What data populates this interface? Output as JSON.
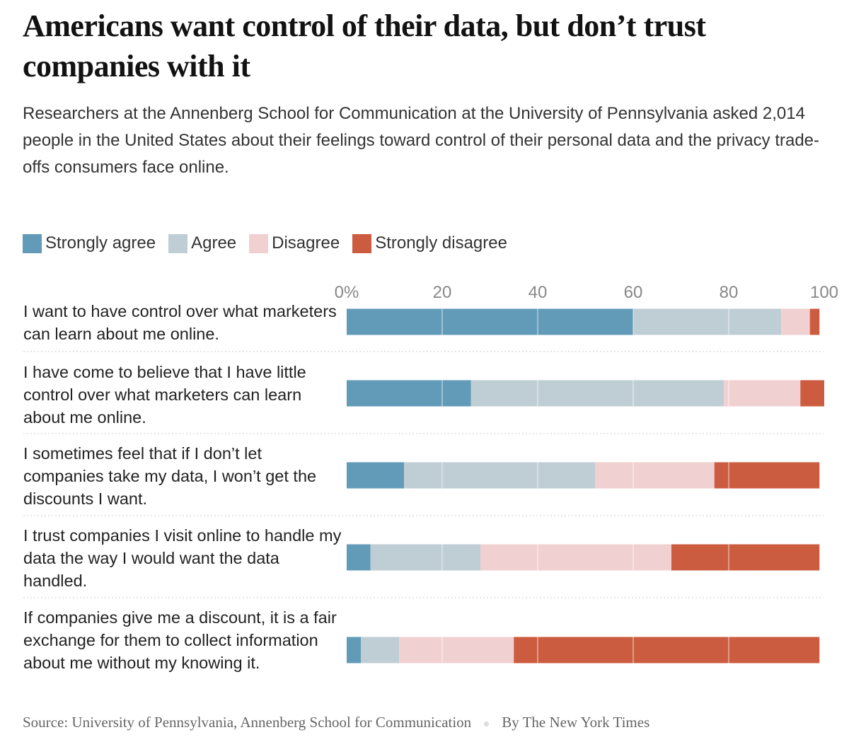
{
  "title": "Americans want control of their data, but don’t trust companies with it",
  "subtitle": "Researchers at the Annenberg School for Communication at the University of Pennsylvania asked 2,014 people in the United States about their feelings toward control of their personal data and the privacy trade-offs consumers face online.",
  "source": "Source: University of Pennsylvania, Annenberg School for Communication",
  "credit": "By The New York Times",
  "chart_data": {
    "type": "bar",
    "orientation": "horizontal",
    "stacked": true,
    "xlim": [
      0,
      100
    ],
    "ticks": [
      "0%",
      "20",
      "40",
      "60",
      "80",
      "100"
    ],
    "tick_values": [
      0,
      20,
      40,
      60,
      80,
      100
    ],
    "legend_position": "top-left",
    "categories": [
      "I want to have control over what marketers can learn about me online.",
      "I have come to believe that I have little control over what marketers can learn about me online.",
      "I sometimes feel that if I don’t let companies take my data, I won’t get the discounts I want.",
      "I trust companies I visit online to handle my data the way I would want the data handled.",
      "If companies give me a discount, it is a fair exchange for them to collect information about me without my knowing it."
    ],
    "series": [
      {
        "name": "Strongly agree",
        "color": "#629bb8",
        "values": [
          60,
          26,
          12,
          5,
          3
        ]
      },
      {
        "name": "Agree",
        "color": "#bfced4",
        "values": [
          31,
          53,
          40,
          23,
          8
        ]
      },
      {
        "name": "Disagree",
        "color": "#f1d0d1",
        "values": [
          6,
          16,
          25,
          40,
          24
        ]
      },
      {
        "name": "Strongly disagree",
        "color": "#cc5c3f",
        "values": [
          2,
          5,
          22,
          31,
          64
        ]
      }
    ]
  }
}
